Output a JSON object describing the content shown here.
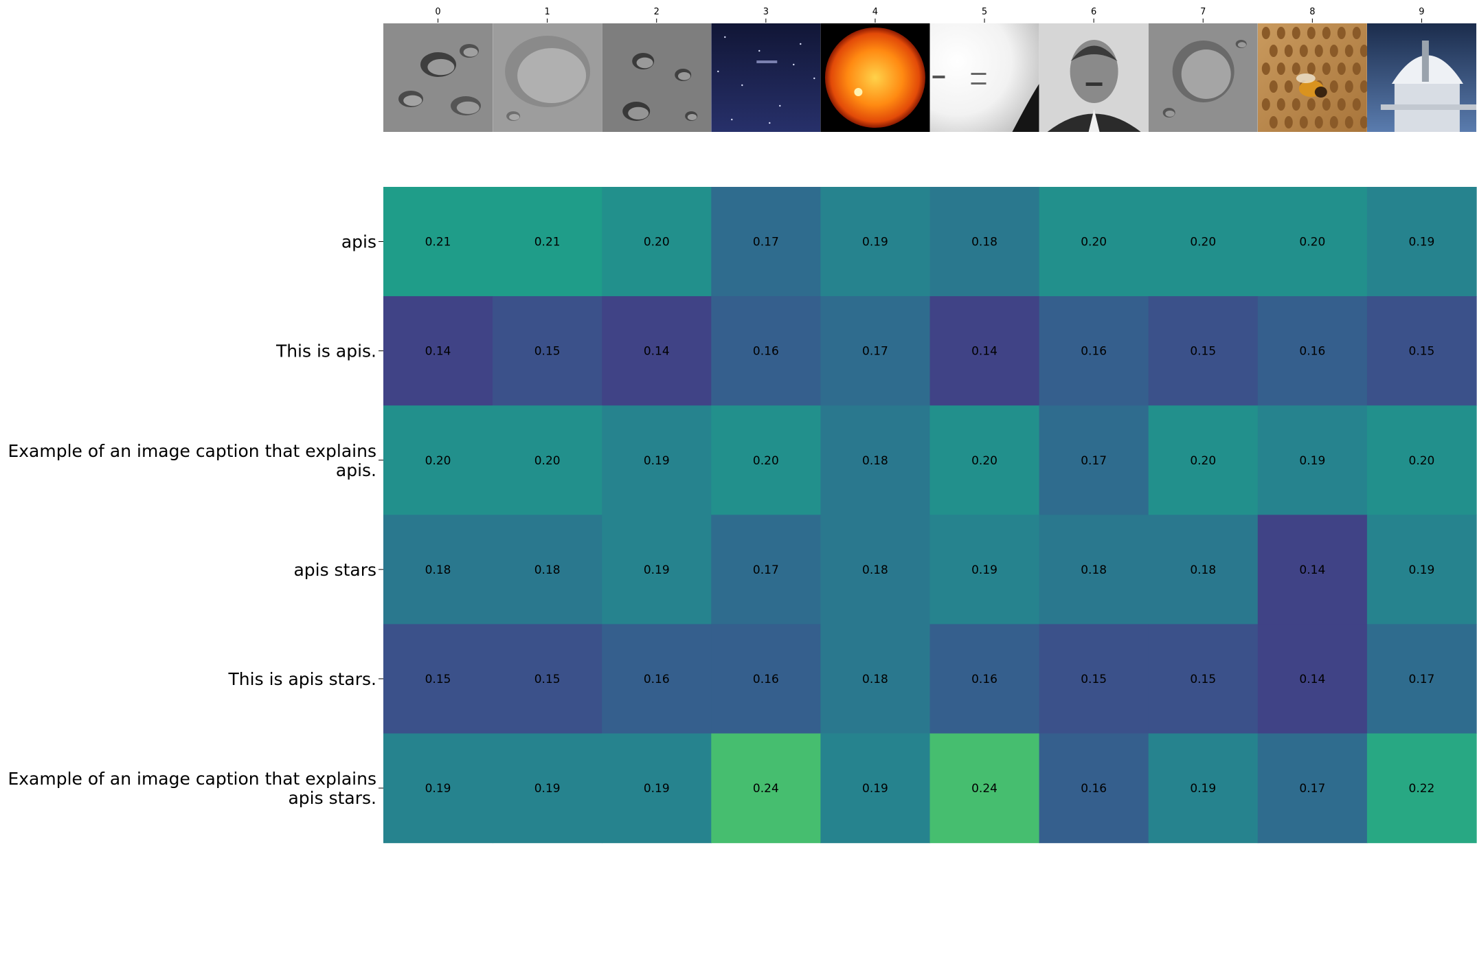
{
  "chart_data": {
    "type": "heatmap",
    "title": "",
    "colormap": "viridis",
    "x_categories": [
      "0",
      "1",
      "2",
      "3",
      "4",
      "5",
      "6",
      "7",
      "8",
      "9"
    ],
    "y_categories": [
      "apis",
      "This is apis.",
      "Example of an image caption that explains apis.",
      "apis stars",
      "This is apis stars.",
      "Example of an image caption that explains apis stars."
    ],
    "values": [
      [
        0.21,
        0.21,
        0.2,
        0.17,
        0.19,
        0.18,
        0.2,
        0.2,
        0.2,
        0.19
      ],
      [
        0.14,
        0.15,
        0.14,
        0.16,
        0.17,
        0.14,
        0.16,
        0.15,
        0.16,
        0.15
      ],
      [
        0.2,
        0.2,
        0.19,
        0.2,
        0.18,
        0.2,
        0.17,
        0.2,
        0.19,
        0.2
      ],
      [
        0.18,
        0.18,
        0.19,
        0.17,
        0.18,
        0.19,
        0.18,
        0.18,
        0.14,
        0.19
      ],
      [
        0.15,
        0.15,
        0.16,
        0.16,
        0.18,
        0.16,
        0.15,
        0.15,
        0.14,
        0.17
      ],
      [
        0.19,
        0.19,
        0.19,
        0.24,
        0.19,
        0.24,
        0.16,
        0.19,
        0.17,
        0.22
      ]
    ],
    "vmin": 0.1,
    "vmax": 0.3,
    "value_format": "2 decimals",
    "thumbnails": [
      "moon-crater-closeup",
      "moon-crater-smooth",
      "moon-craters-surface",
      "night-sky-text",
      "sun-orange-disk",
      "inverted-telescope-frame",
      "portrait-man-bw",
      "moon-crater-grey",
      "bee-on-honeycomb",
      "observatory-dome"
    ]
  }
}
